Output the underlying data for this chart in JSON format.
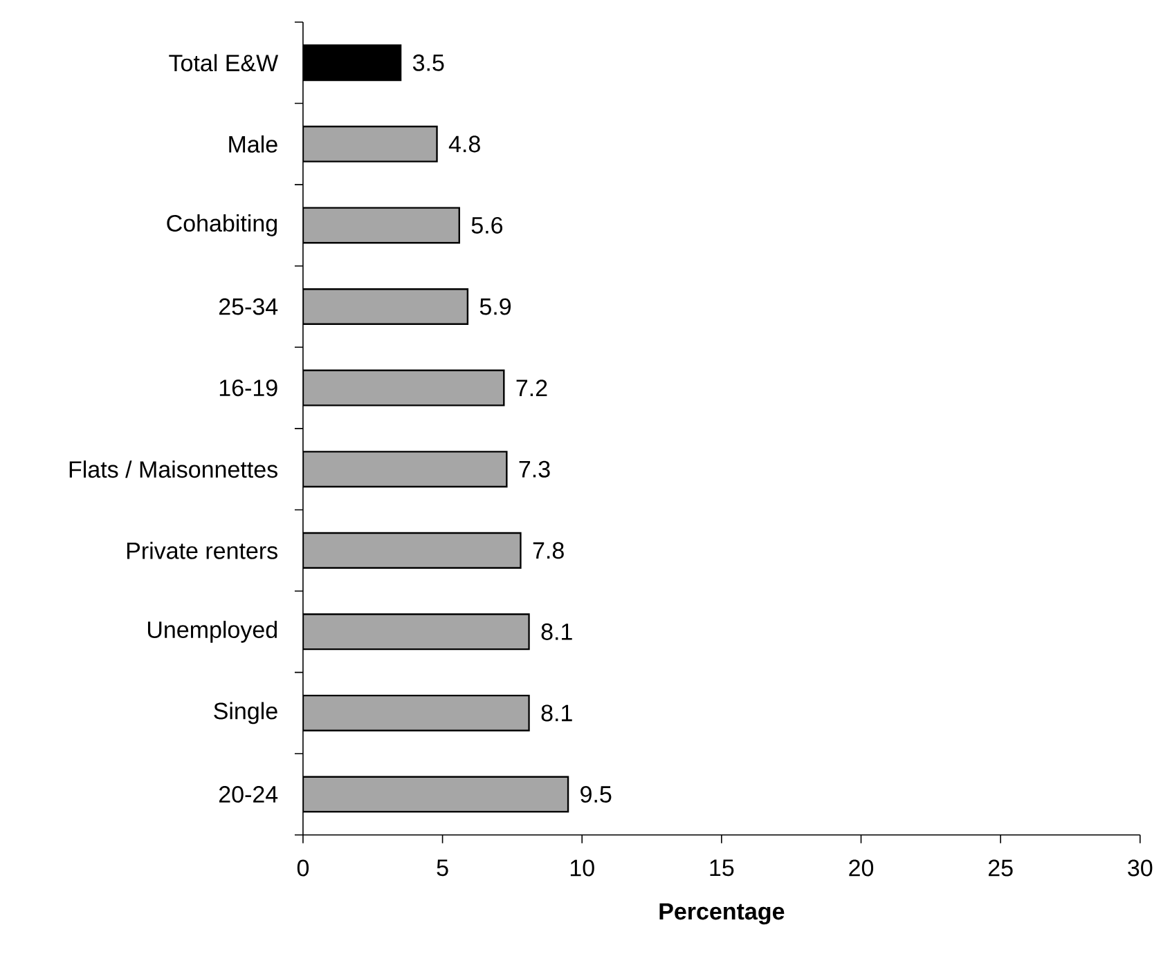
{
  "chart_data": {
    "type": "bar",
    "orientation": "horizontal",
    "categories": [
      "Total E&W",
      "Male",
      "Cohabiting",
      "25-34",
      "16-19",
      "Flats / Maisonnettes",
      "Private renters",
      "Unemployed",
      "Single",
      "20-24"
    ],
    "values": [
      3.5,
      4.8,
      5.6,
      5.9,
      7.2,
      7.3,
      7.8,
      8.1,
      8.1,
      9.5
    ],
    "colors": [
      "#000000",
      "#a6a6a6",
      "#a6a6a6",
      "#a6a6a6",
      "#a6a6a6",
      "#a6a6a6",
      "#a6a6a6",
      "#a6a6a6",
      "#a6a6a6",
      "#a6a6a6"
    ],
    "xlim": [
      0,
      30
    ],
    "xticks": [
      0,
      5,
      10,
      15,
      20,
      25,
      30
    ],
    "xlabel": "Percentage",
    "data_labels": true
  }
}
